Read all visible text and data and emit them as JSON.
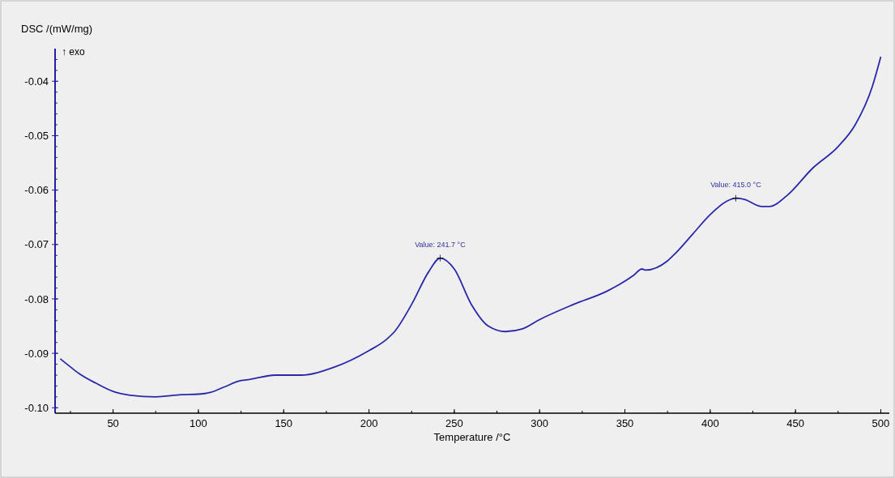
{
  "chart_data": {
    "type": "line",
    "xlabel": "Temperature /°C",
    "ylabel": "DSC /(mW/mg)",
    "x": [
      19,
      25,
      30,
      40,
      50,
      60,
      75,
      90,
      100,
      107,
      115,
      125,
      130,
      145,
      160,
      180,
      200,
      210,
      215,
      225,
      235,
      241.7,
      250,
      260,
      270,
      280,
      290,
      300,
      320,
      340,
      355,
      360,
      362,
      375,
      380,
      390,
      400,
      410,
      415,
      420,
      430,
      435,
      445,
      460,
      475,
      485,
      495,
      500
    ],
    "series": [
      {
        "color": "#2828a8",
        "values": [
          -0.091,
          -0.0925,
          -0.0937,
          -0.0955,
          -0.097,
          -0.0977,
          -0.098,
          -0.0976,
          -0.0975,
          -0.0972,
          -0.0962,
          -0.095,
          -0.0948,
          -0.094,
          -0.094,
          -0.0925,
          -0.0895,
          -0.0875,
          -0.086,
          -0.081,
          -0.075,
          -0.0725,
          -0.0745,
          -0.081,
          -0.085,
          -0.086,
          -0.0855,
          -0.0838,
          -0.081,
          -0.0785,
          -0.0757,
          -0.0745,
          -0.0747,
          -0.073,
          -0.0715,
          -0.068,
          -0.0645,
          -0.062,
          -0.0615,
          -0.0617,
          -0.063,
          -0.063,
          -0.061,
          -0.056,
          -0.052,
          -0.048,
          -0.041,
          -0.0355
        ]
      }
    ],
    "xlim": [
      16,
      505
    ],
    "ylim": [
      -0.101,
      -0.034
    ],
    "xticks": [
      50,
      100,
      150,
      200,
      250,
      300,
      350,
      400,
      450,
      500
    ],
    "yticks": [
      {
        "value": -0.04,
        "label": "-0.04"
      },
      {
        "value": -0.05,
        "label": "-0.05"
      },
      {
        "value": -0.06,
        "label": "-0.06"
      },
      {
        "value": -0.07,
        "label": "-0.07"
      },
      {
        "value": -0.08,
        "label": "-0.08"
      },
      {
        "value": -0.09,
        "label": "-0.09"
      },
      {
        "value": -0.1,
        "label": "-0.10"
      }
    ],
    "annotations": [
      "↑ exo",
      {
        "text": "Value: 241.7 °C",
        "x": 241.7,
        "y": -0.0725
      },
      {
        "text": "Value: 415.0 °C",
        "x": 415,
        "y": -0.0615
      }
    ],
    "grid": false,
    "marker": "none",
    "line_style": "solid"
  }
}
